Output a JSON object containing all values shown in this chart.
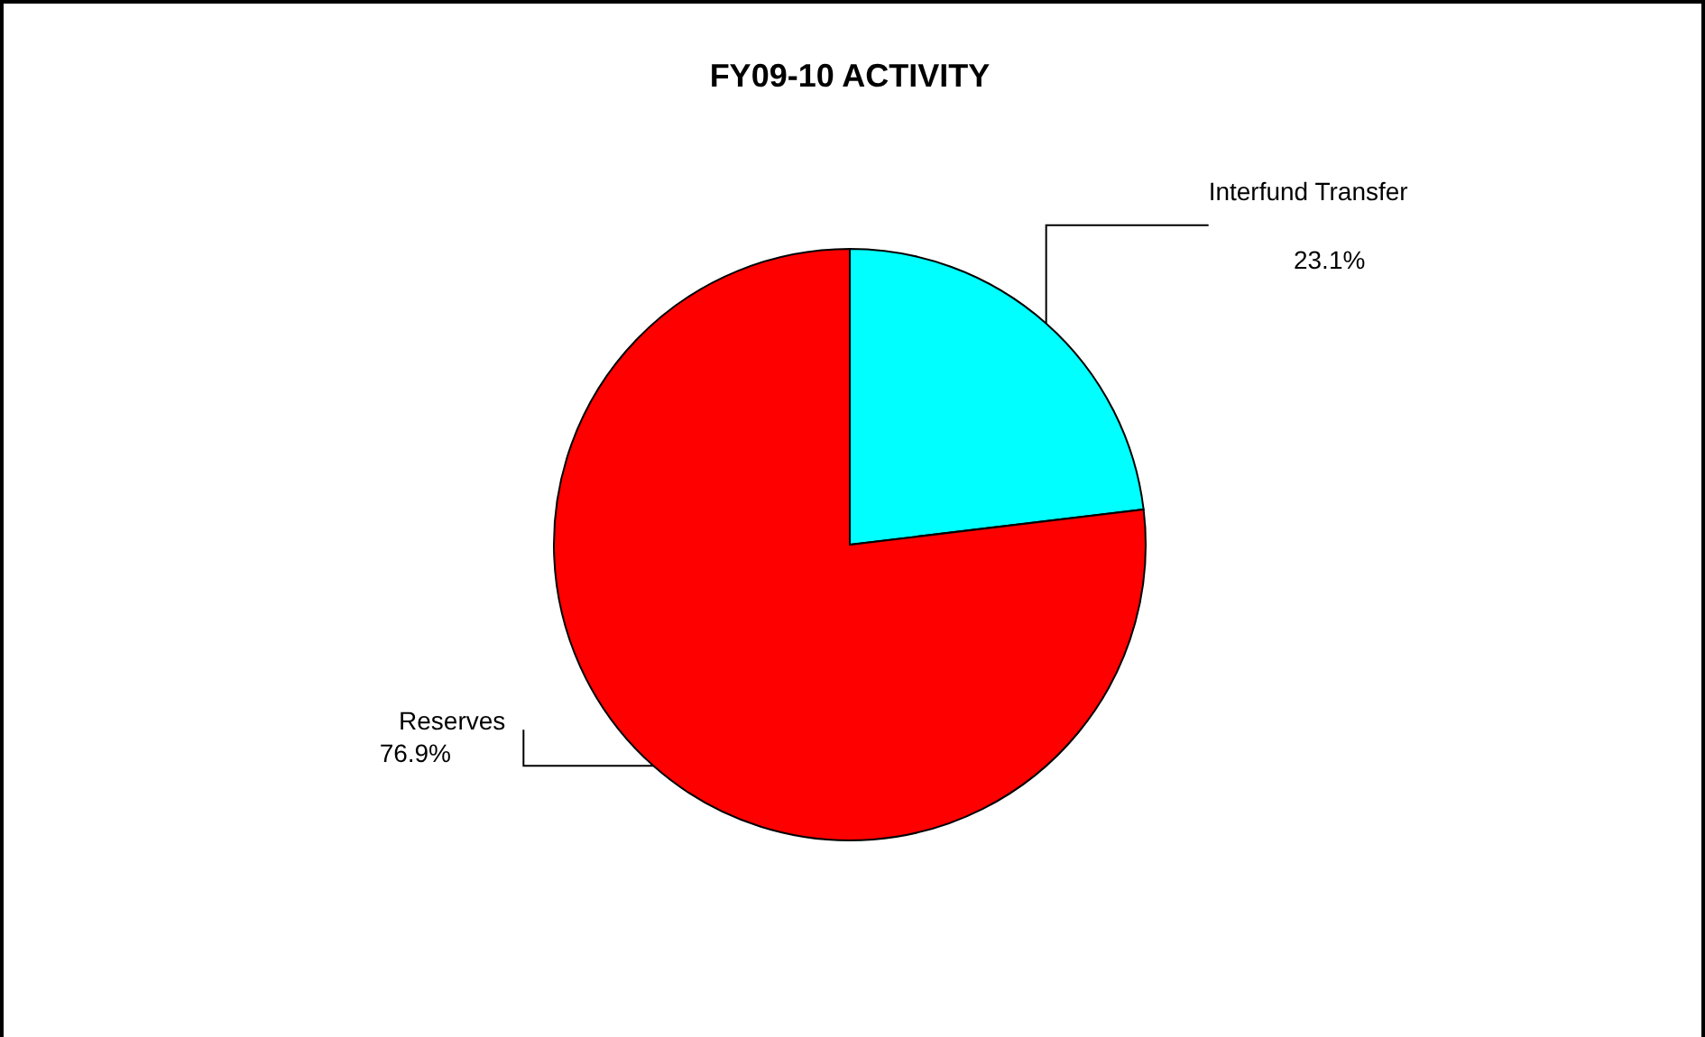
{
  "chart_data": {
    "type": "pie",
    "title": "FY09-10 ACTIVITY",
    "categories": [
      "Interfund Transfer",
      "Reserves"
    ],
    "values": [
      23.1,
      76.9
    ],
    "value_labels": [
      "23.1%",
      "76.9%"
    ],
    "colors": [
      "#00ffff",
      "#ff0000"
    ]
  }
}
